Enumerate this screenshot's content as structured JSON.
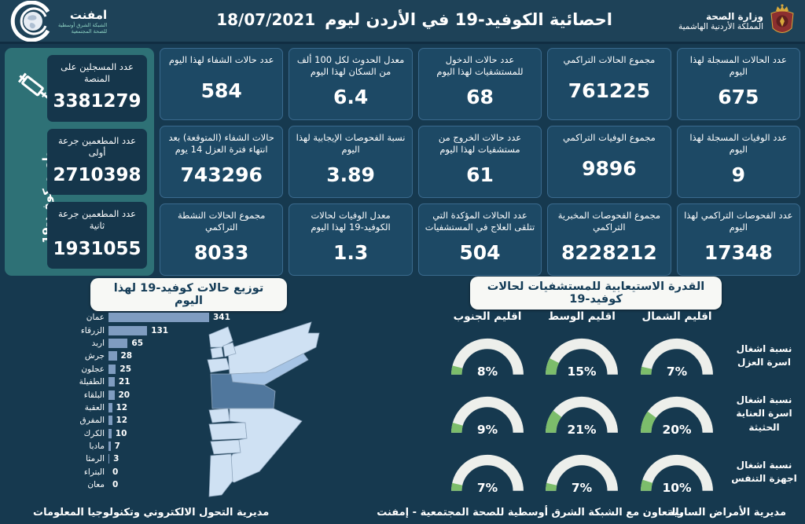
{
  "header": {
    "title": "احصائية الكوفيد-19 في الأردن ليوم",
    "date": "18/07/2021",
    "ministry_name": "وزارة الصحة",
    "ministry_country": "المملكة الأردنية الهاشمية",
    "emphnet_name": "امفنت",
    "emphnet_sub1": "الشبكة الشرق أوسطية",
    "emphnet_sub2": "للصحة المجتمعية"
  },
  "daily_stats": [
    [
      {
        "label": "عدد الحالات المسجلة لهذا اليوم",
        "value": "675"
      },
      {
        "label": "عدد الوفيات المسجلة لهذا اليوم",
        "value": "9"
      },
      {
        "label": "عدد الفحوصات التراكمي لهذا اليوم",
        "value": "17348"
      }
    ],
    [
      {
        "label": "مجموع الحالات التراكمي",
        "value": "761225"
      },
      {
        "label": "مجموع الوفيات التراكمي",
        "value": "9896"
      },
      {
        "label": "مجموع الفحوصات المخبرية التراكمي",
        "value": "8228212"
      }
    ],
    [
      {
        "label": "عدد حالات الدخول للمستشفيات لهذا اليوم",
        "value": "68"
      },
      {
        "label": "عدد حالات الخروج من مستشفيات لهذا اليوم",
        "value": "61"
      },
      {
        "label": "عدد الحالات المؤكدة التي تتلقى العلاج في المستشفيات",
        "value": "504"
      }
    ],
    [
      {
        "label": "معدل الحدوث لكل 100 ألف من السكان لهذا اليوم",
        "value": "6.4"
      },
      {
        "label": "نسبة الفحوصات الإيجابية لهذا اليوم",
        "value": "3.89"
      },
      {
        "label": "معدل الوفيات لحالات الكوفيد-19 لهذا اليوم",
        "value": "1.3"
      }
    ],
    [
      {
        "label": "عدد حالات الشفاء لهذا اليوم",
        "value": "584"
      },
      {
        "label": "حالات الشفاء (المتوقعة) بعد انتهاء فترة العزل 14 يوم",
        "value": "743296"
      },
      {
        "label": "مجموع الحالات النشطة التراكمي",
        "value": "8033"
      }
    ]
  ],
  "vaccination": {
    "side_label": "مطعوم كوفيد-19",
    "items": [
      {
        "label": "عدد المسجلين على المنصة",
        "value": "3381279"
      },
      {
        "label": "عدد المطعمين جرعة أولى",
        "value": "2710398"
      },
      {
        "label": "عدد المطعمين جرعة ثانية",
        "value": "1931055"
      }
    ]
  },
  "chart_data": [
    {
      "type": "bar",
      "orientation": "horizontal",
      "title": "توزيع حالات كوفيد-19 لهذا اليوم",
      "categories": [
        "عمان",
        "الزرقاء",
        "اربد",
        "جرش",
        "عجلون",
        "الطفيلة",
        "البلقاء",
        "العقبة",
        "المفرق",
        "الكرك",
        "مادبا",
        "الرمثا",
        "البتراء",
        "معان"
      ],
      "values": [
        341,
        131,
        65,
        28,
        25,
        21,
        20,
        12,
        12,
        10,
        7,
        3,
        0,
        0
      ],
      "xlim": [
        0,
        341
      ],
      "bar_color": "#7f9cc0"
    },
    {
      "type": "gauge",
      "title": "القدرة الاستيعابية للمستشفيات لحالات كوفيد-19",
      "regions": [
        "اقليم الشمال",
        "اقليم الوسط",
        "اقليم الجنوب"
      ],
      "rows": [
        {
          "label": "نسبة اشغال اسرة العزل",
          "values_pct": [
            7,
            15,
            8
          ]
        },
        {
          "label": "نسبة اشغال اسرة العناية الحثيثة",
          "values_pct": [
            20,
            21,
            9
          ]
        },
        {
          "label": "نسبة اشغال اجهزة التنفس",
          "values_pct": [
            10,
            7,
            7
          ]
        }
      ],
      "fill_color": "#7cbd6b",
      "track_color": "#edefeb"
    }
  ],
  "map": {
    "colors": {
      "light": "#cfe1f3",
      "medium": "#a6c4e5",
      "dark": "#50779d"
    }
  },
  "footer": {
    "right": "مديرية الأمراض السارية",
    "center": "بالتعاون مع الشبكة الشرق أوسطية للصحة المجتمعية - إمفنت",
    "left": "مديرية التحول الالكتروني وتكنولوجيا المعلومات"
  },
  "colors": {
    "background": "#16394f",
    "header": "#1e4258",
    "card": "#1d4965",
    "card_border": "#3a6a8e",
    "vaccine_panel": "#2e7176",
    "bar": "#7f9cc0",
    "gauge_green": "#7cbd6b",
    "gauge_track": "#edefeb",
    "pill": "#f7f8f5",
    "pill_text": "#143c57"
  }
}
